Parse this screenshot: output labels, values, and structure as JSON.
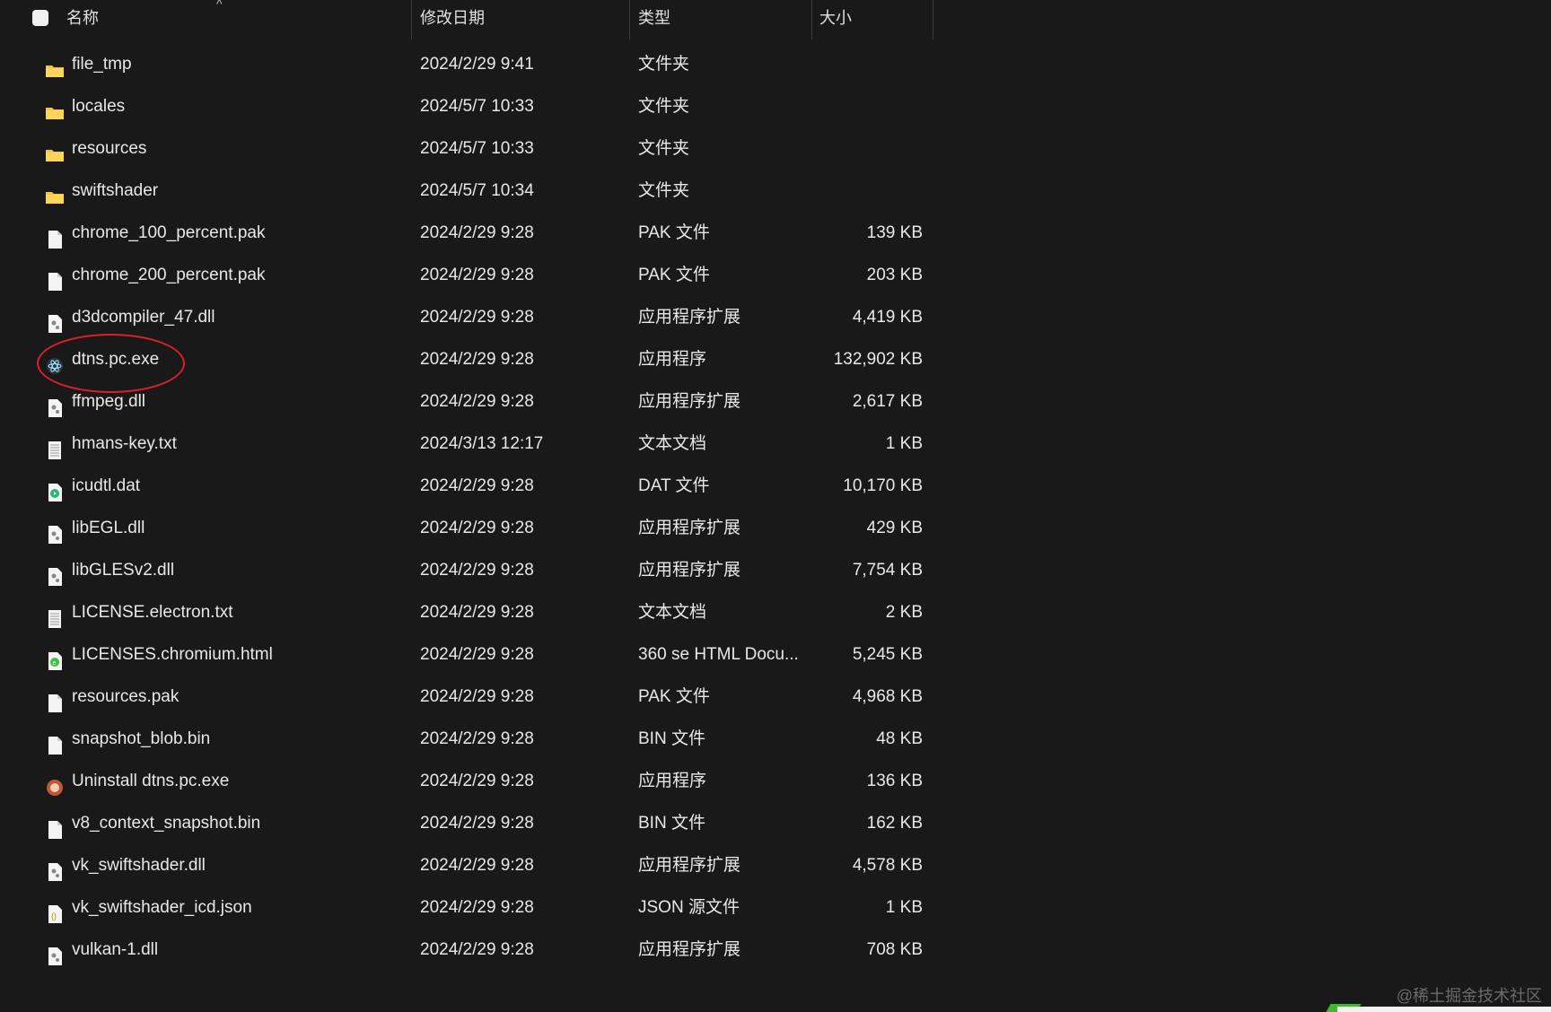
{
  "header": {
    "columns": [
      "名称",
      "修改日期",
      "类型",
      "大小"
    ],
    "sort_indicator": "^"
  },
  "files": [
    {
      "name": "file_tmp",
      "date": "2024/2/29 9:41",
      "type": "文件夹",
      "size": "",
      "icon": "folder"
    },
    {
      "name": "locales",
      "date": "2024/5/7 10:33",
      "type": "文件夹",
      "size": "",
      "icon": "folder"
    },
    {
      "name": "resources",
      "date": "2024/5/7 10:33",
      "type": "文件夹",
      "size": "",
      "icon": "folder"
    },
    {
      "name": "swiftshader",
      "date": "2024/5/7 10:34",
      "type": "文件夹",
      "size": "",
      "icon": "folder"
    },
    {
      "name": "chrome_100_percent.pak",
      "date": "2024/2/29 9:28",
      "type": "PAK 文件",
      "size": "139 KB",
      "icon": "file"
    },
    {
      "name": "chrome_200_percent.pak",
      "date": "2024/2/29 9:28",
      "type": "PAK 文件",
      "size": "203 KB",
      "icon": "file"
    },
    {
      "name": "d3dcompiler_47.dll",
      "date": "2024/2/29 9:28",
      "type": "应用程序扩展",
      "size": "4,419 KB",
      "icon": "dll"
    },
    {
      "name": "dtns.pc.exe",
      "date": "2024/2/29 9:28",
      "type": "应用程序",
      "size": "132,902 KB",
      "icon": "electron"
    },
    {
      "name": "ffmpeg.dll",
      "date": "2024/2/29 9:28",
      "type": "应用程序扩展",
      "size": "2,617 KB",
      "icon": "dll"
    },
    {
      "name": "hmans-key.txt",
      "date": "2024/3/13 12:17",
      "type": "文本文档",
      "size": "1 KB",
      "icon": "text"
    },
    {
      "name": "icudtl.dat",
      "date": "2024/2/29 9:28",
      "type": "DAT 文件",
      "size": "10,170 KB",
      "icon": "media"
    },
    {
      "name": "libEGL.dll",
      "date": "2024/2/29 9:28",
      "type": "应用程序扩展",
      "size": "429 KB",
      "icon": "dll"
    },
    {
      "name": "libGLESv2.dll",
      "date": "2024/2/29 9:28",
      "type": "应用程序扩展",
      "size": "7,754 KB",
      "icon": "dll"
    },
    {
      "name": "LICENSE.electron.txt",
      "date": "2024/2/29 9:28",
      "type": "文本文档",
      "size": "2 KB",
      "icon": "text"
    },
    {
      "name": "LICENSES.chromium.html",
      "date": "2024/2/29 9:28",
      "type": "360 se HTML Docu...",
      "size": "5,245 KB",
      "icon": "html"
    },
    {
      "name": "resources.pak",
      "date": "2024/2/29 9:28",
      "type": "PAK 文件",
      "size": "4,968 KB",
      "icon": "file"
    },
    {
      "name": "snapshot_blob.bin",
      "date": "2024/2/29 9:28",
      "type": "BIN 文件",
      "size": "48 KB",
      "icon": "file"
    },
    {
      "name": "Uninstall dtns.pc.exe",
      "date": "2024/2/29 9:28",
      "type": "应用程序",
      "size": "136 KB",
      "icon": "uninstall"
    },
    {
      "name": "v8_context_snapshot.bin",
      "date": "2024/2/29 9:28",
      "type": "BIN 文件",
      "size": "162 KB",
      "icon": "file"
    },
    {
      "name": "vk_swiftshader.dll",
      "date": "2024/2/29 9:28",
      "type": "应用程序扩展",
      "size": "4,578 KB",
      "icon": "dll"
    },
    {
      "name": "vk_swiftshader_icd.json",
      "date": "2024/2/29 9:28",
      "type": "JSON 源文件",
      "size": "1 KB",
      "icon": "json"
    },
    {
      "name": "vulkan-1.dll",
      "date": "2024/2/29 9:28",
      "type": "应用程序扩展",
      "size": "708 KB",
      "icon": "dll"
    }
  ],
  "highlight": {
    "file": "dtns.pc.exe",
    "color": "#d8202a"
  },
  "watermark": "@稀土掘金技术社区"
}
